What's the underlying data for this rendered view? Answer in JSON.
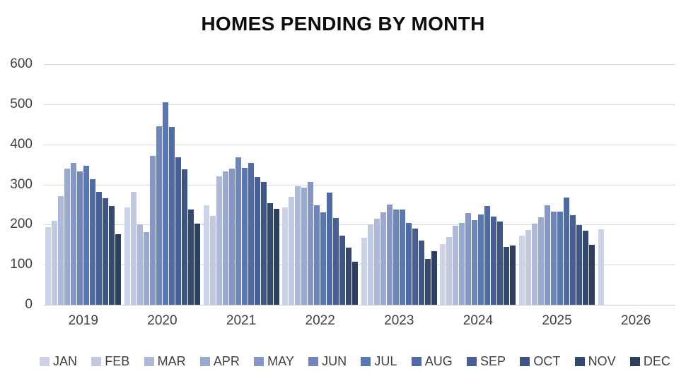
{
  "title": "HOMES PENDING BY MONTH",
  "chart_data": {
    "type": "bar",
    "title": "HOMES PENDING BY MONTH",
    "categories": [
      "2019",
      "2020",
      "2021",
      "2022",
      "2023",
      "2024",
      "2025",
      "2026"
    ],
    "series": [
      {
        "name": "JAN",
        "color": "#ccd3e8",
        "values": [
          193,
          243,
          248,
          242,
          168,
          151,
          172,
          188
        ]
      },
      {
        "name": "FEB",
        "color": "#c0c9e2",
        "values": [
          210,
          281,
          222,
          270,
          200,
          169,
          187,
          null
        ]
      },
      {
        "name": "MAR",
        "color": "#aeb9d9",
        "values": [
          271,
          200,
          320,
          295,
          214,
          197,
          202,
          null
        ]
      },
      {
        "name": "APR",
        "color": "#9aa9cf",
        "values": [
          340,
          182,
          332,
          292,
          230,
          205,
          218,
          null
        ]
      },
      {
        "name": "MAY",
        "color": "#8697c5",
        "values": [
          353,
          372,
          340,
          307,
          250,
          229,
          249,
          null
        ]
      },
      {
        "name": "JUN",
        "color": "#6e85bc",
        "values": [
          332,
          446,
          368,
          248,
          237,
          211,
          233,
          null
        ]
      },
      {
        "name": "JUL",
        "color": "#5b77b2",
        "values": [
          347,
          505,
          341,
          230,
          238,
          226,
          233,
          null
        ]
      },
      {
        "name": "AUG",
        "color": "#4e6ba8",
        "values": [
          314,
          444,
          353,
          280,
          205,
          247,
          268,
          null
        ]
      },
      {
        "name": "SEP",
        "color": "#475f97",
        "values": [
          281,
          367,
          318,
          216,
          190,
          220,
          224,
          null
        ]
      },
      {
        "name": "OCT",
        "color": "#3f5584",
        "values": [
          265,
          337,
          307,
          173,
          160,
          207,
          198,
          null
        ]
      },
      {
        "name": "NOV",
        "color": "#35496f",
        "values": [
          246,
          237,
          254,
          142,
          115,
          145,
          184,
          null
        ]
      },
      {
        "name": "DEC",
        "color": "#2d3f60",
        "values": [
          176,
          203,
          240,
          107,
          133,
          147,
          149,
          null
        ]
      }
    ],
    "ylim": [
      0,
      600
    ],
    "ytick_interval": 100,
    "ytick_labels": [
      "0",
      "100",
      "200",
      "300",
      "400",
      "500",
      "600"
    ],
    "grid": "horizontal",
    "legend_position": "bottom",
    "colors": {
      "gridline": "#d9d9d9",
      "axis_text": "#404040",
      "title_text": "#0d0d0d",
      "background": "#ffffff"
    }
  }
}
